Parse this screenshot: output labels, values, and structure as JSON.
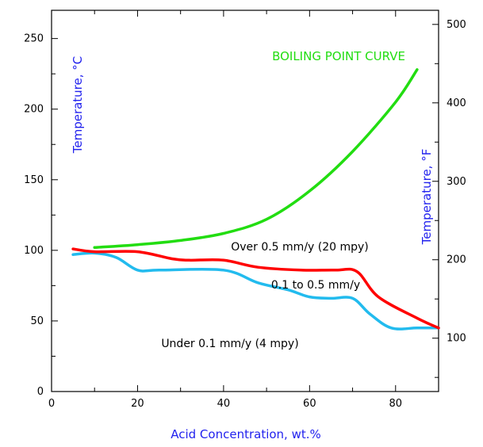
{
  "chart_data": {
    "type": "line",
    "xlabel": "Acid Concentration, wt.%",
    "ylabel": "Temperature, °C",
    "ylabel_right": "Temperature, °F",
    "xlim": [
      0,
      90
    ],
    "ylim": [
      0,
      270
    ],
    "ylim_right_F": [
      32,
      518
    ],
    "x_ticks": [
      "0",
      "20",
      "40",
      "60",
      "80"
    ],
    "y_ticks": [
      "0",
      "50",
      "100",
      "150",
      "200",
      "250"
    ],
    "y_ticks_right": [
      "100",
      "200",
      "300",
      "400",
      "500"
    ],
    "grid": false,
    "series": [
      {
        "name": "BOILING POINT CURVE",
        "color": "#22dd11",
        "points": [
          [
            10,
            102
          ],
          [
            20,
            104
          ],
          [
            30,
            107
          ],
          [
            40,
            112
          ],
          [
            50,
            122
          ],
          [
            60,
            142
          ],
          [
            70,
            170
          ],
          [
            80,
            205
          ],
          [
            85,
            228
          ]
        ]
      },
      {
        "color": "#ff0000",
        "points": [
          [
            5,
            101
          ],
          [
            10,
            99
          ],
          [
            20,
            99
          ],
          [
            28,
            94
          ],
          [
            32,
            93
          ],
          [
            40,
            93
          ],
          [
            48,
            88
          ],
          [
            58,
            86
          ],
          [
            66,
            86
          ],
          [
            71,
            85
          ],
          [
            76,
            67
          ],
          [
            85,
            52
          ],
          [
            90,
            45
          ]
        ]
      },
      {
        "color": "#22bbee",
        "points": [
          [
            5,
            97
          ],
          [
            10,
            98
          ],
          [
            15,
            95
          ],
          [
            20,
            86
          ],
          [
            25,
            86
          ],
          [
            40,
            86
          ],
          [
            48,
            77
          ],
          [
            55,
            72
          ],
          [
            60,
            67
          ],
          [
            65,
            66
          ],
          [
            70,
            66
          ],
          [
            74,
            55
          ],
          [
            79,
            45
          ],
          [
            85,
            45
          ],
          [
            90,
            45
          ]
        ]
      }
    ],
    "annotations": [
      {
        "text": "Over 0.5 mm/y (20 mpy)",
        "x": 40.5,
        "y": 103
      },
      {
        "text": "0.1 to 0.5 mm/y",
        "x": 51,
        "y": 76
      },
      {
        "text": "Under 0.1 mm/y (4 mpy)",
        "x": 25,
        "y": 33
      }
    ]
  }
}
